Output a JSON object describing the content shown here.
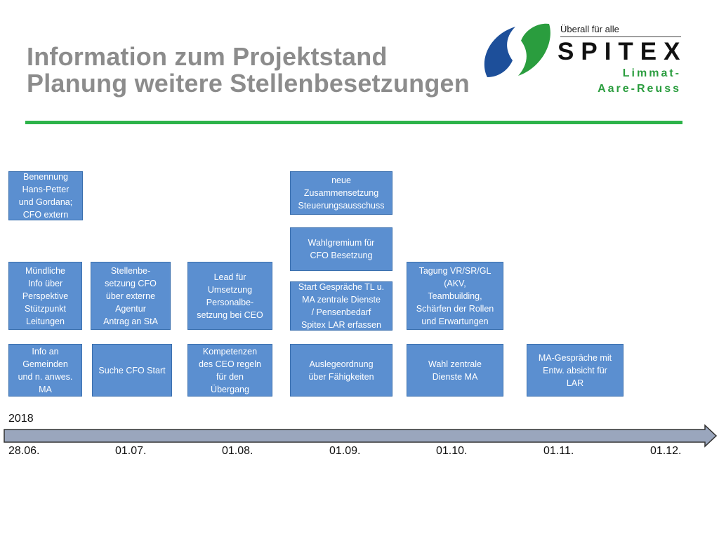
{
  "header": {
    "title_line1": "Information zum Projektstand",
    "title_line2": "Planung weitere Stellenbesetzungen"
  },
  "logo": {
    "tagline": "Überall für alle",
    "brand": "SPITEX",
    "sub1": "Limmat-",
    "sub2": "Aare-Reuss",
    "colors": {
      "blue": "#1d4f9a",
      "green": "#2a9d3e"
    }
  },
  "boxes": [
    "Benennung\nHans-Petter\nund Gordana;\nCFO extern",
    "neue\nZusammensetzung\nSteuerungsausschuss",
    "Wahlgremium für\nCFO Besetzung",
    "Mündliche\nInfo über\nPerspektive\nStützpunkt\nLeitungen",
    "Stellenbe-\nsetzung CFO\nüber externe\nAgentur\nAntrag an StA",
    "Lead für\nUmsetzung\nPersonalbe-\nsetzung bei CEO",
    "Start Gespräche TL u.\nMA zentrale Dienste\n/ Pensenbedarf\nSpitex LAR erfassen",
    "Tagung VR/SR/GL\n(AKV,\nTeambuilding,\nSchärfen der Rollen\nund Erwartungen",
    "Info an\nGemeinden\nund n. anwes.\nMA",
    "Suche CFO Start",
    "Kompetenzen\ndes CEO regeln\nfür den\nÜbergang",
    "Auslegeordnung\nüber Fähigkeiten",
    "Wahl zentrale\nDienste MA",
    "MA-Gespräche mit\nEntw. absicht für\nLAR"
  ],
  "timeline": {
    "year": "2018",
    "ticks": [
      "28.06.",
      "01.07.",
      "01.08.",
      "01.09.",
      "01.10.",
      "01.11.",
      "01.12."
    ]
  },
  "colors": {
    "accent_rule": "#2db34a",
    "box_fill": "#5b8fd0",
    "title": "#8c8c8c"
  }
}
